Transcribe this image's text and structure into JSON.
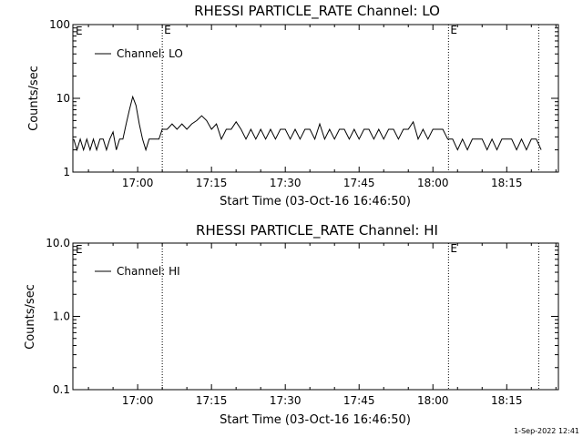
{
  "footer_timestamp": "1-Sep-2022 12:41",
  "chart_data": [
    {
      "type": "line",
      "title": "RHESSI PARTICLE_RATE Channel: LO",
      "xlabel": "Start Time (03-Oct-16 16:46:50)",
      "ylabel": "Counts/sec",
      "yscale": "log",
      "ylim": [
        1,
        100
      ],
      "yticks": [
        1,
        10,
        100
      ],
      "ytick_labels": [
        "1",
        "10",
        "100"
      ],
      "xlim": [
        "16:46:50",
        "18:25:30"
      ],
      "xticks": [
        "17:00",
        "17:15",
        "17:30",
        "17:45",
        "18:00",
        "18:15"
      ],
      "legend": {
        "label": "Channel: LO",
        "position": "top-left"
      },
      "markers": [
        {
          "time": "17:05:00",
          "label": "E"
        },
        {
          "time": "18:03:10",
          "label": "E"
        },
        {
          "time": "18:21:30",
          "label": ""
        }
      ],
      "left_marker_label": "E",
      "series": [
        {
          "name": "Channel: LO",
          "x": [
            "16:47:00",
            "16:47:40",
            "16:48:20",
            "16:49:00",
            "16:49:40",
            "16:50:20",
            "16:51:00",
            "16:51:40",
            "16:52:20",
            "16:53:00",
            "16:53:40",
            "16:54:20",
            "16:55:00",
            "16:55:40",
            "16:56:20",
            "16:57:00",
            "16:57:40",
            "16:58:20",
            "16:59:00",
            "16:59:40",
            "17:00:20",
            "17:01:00",
            "17:01:40",
            "17:02:20",
            "17:03:00",
            "17:03:40",
            "17:04:20",
            "17:05:00",
            "17:06:00",
            "17:07:00",
            "17:08:00",
            "17:09:00",
            "17:10:00",
            "17:11:00",
            "17:12:00",
            "17:13:00",
            "17:14:00",
            "17:15:00",
            "17:16:00",
            "17:17:00",
            "17:18:00",
            "17:19:00",
            "17:20:00",
            "17:21:00",
            "17:22:00",
            "17:23:00",
            "17:24:00",
            "17:25:00",
            "17:26:00",
            "17:27:00",
            "17:28:00",
            "17:29:00",
            "17:30:00",
            "17:31:00",
            "17:32:00",
            "17:33:00",
            "17:34:00",
            "17:35:00",
            "17:36:00",
            "17:37:00",
            "17:38:00",
            "17:39:00",
            "17:40:00",
            "17:41:00",
            "17:42:00",
            "17:43:00",
            "17:44:00",
            "17:45:00",
            "17:46:00",
            "17:47:00",
            "17:48:00",
            "17:49:00",
            "17:50:00",
            "17:51:00",
            "17:52:00",
            "17:53:00",
            "17:54:00",
            "17:55:00",
            "17:56:00",
            "17:57:00",
            "17:58:00",
            "17:59:00",
            "18:00:00",
            "18:01:00",
            "18:02:00",
            "18:03:00",
            "18:04:00",
            "18:05:00",
            "18:06:00",
            "18:07:00",
            "18:08:00",
            "18:09:00",
            "18:10:00",
            "18:11:00",
            "18:12:00",
            "18:13:00",
            "18:14:00",
            "18:15:00",
            "18:16:00",
            "18:17:00",
            "18:18:00",
            "18:19:00",
            "18:20:00",
            "18:21:00",
            "18:22:00"
          ],
          "y": [
            2.8,
            2.0,
            2.8,
            2.0,
            2.8,
            2.0,
            2.8,
            2.0,
            2.8,
            2.8,
            2.0,
            2.8,
            3.5,
            2.0,
            2.8,
            2.8,
            4.5,
            7.0,
            10.5,
            8.0,
            4.5,
            2.8,
            2.0,
            2.8,
            2.8,
            2.8,
            2.8,
            3.8,
            3.8,
            4.5,
            3.8,
            4.5,
            3.8,
            4.5,
            5.0,
            5.8,
            5.0,
            3.8,
            4.5,
            2.8,
            3.8,
            3.8,
            4.8,
            3.8,
            2.8,
            3.8,
            2.8,
            3.8,
            2.8,
            3.8,
            2.8,
            3.8,
            3.8,
            2.8,
            3.8,
            2.8,
            3.8,
            3.8,
            2.8,
            4.5,
            2.8,
            3.8,
            2.8,
            3.8,
            3.8,
            2.8,
            3.8,
            2.8,
            3.8,
            3.8,
            2.8,
            3.8,
            2.8,
            3.8,
            3.8,
            2.8,
            3.8,
            3.8,
            4.8,
            2.8,
            3.8,
            2.8,
            3.8,
            3.8,
            3.8,
            2.8,
            2.8,
            2.0,
            2.8,
            2.0,
            2.8,
            2.8,
            2.8,
            2.0,
            2.8,
            2.0,
            2.8,
            2.8,
            2.8,
            2.0,
            2.8,
            2.0,
            2.8,
            2.8,
            2.0
          ]
        }
      ]
    },
    {
      "type": "line",
      "title": "RHESSI PARTICLE_RATE Channel: HI",
      "xlabel": "Start Time (03-Oct-16 16:46:50)",
      "ylabel": "Counts/sec",
      "yscale": "log",
      "ylim": [
        0.1,
        10
      ],
      "yticks": [
        0.1,
        1,
        10
      ],
      "ytick_labels": [
        "0.1",
        "1.0",
        "10.0"
      ],
      "xlim": [
        "16:46:50",
        "18:25:30"
      ],
      "xticks": [
        "17:00",
        "17:15",
        "17:30",
        "17:45",
        "18:00",
        "18:15"
      ],
      "legend": {
        "label": "Channel: HI",
        "position": "top-left"
      },
      "markers": [
        {
          "time": "17:05:00",
          "label": ""
        },
        {
          "time": "18:03:10",
          "label": "E"
        },
        {
          "time": "18:21:30",
          "label": ""
        }
      ],
      "left_marker_label": "E",
      "series": [
        {
          "name": "Channel: HI",
          "x": [],
          "y": []
        }
      ]
    }
  ]
}
